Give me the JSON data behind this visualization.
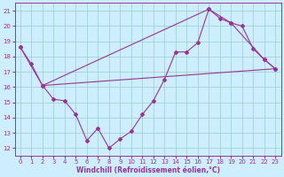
{
  "xlabel": "Windchill (Refroidissement éolien,°C)",
  "background_color": "#cceeff",
  "line_color": "#993399",
  "grid_color": "#99cccc",
  "xlim": [
    -0.5,
    23.5
  ],
  "ylim": [
    11.5,
    21.5
  ],
  "xticks": [
    0,
    1,
    2,
    3,
    4,
    5,
    6,
    7,
    8,
    9,
    10,
    11,
    12,
    13,
    14,
    15,
    16,
    17,
    18,
    19,
    20,
    21,
    22,
    23
  ],
  "yticks": [
    12,
    13,
    14,
    15,
    16,
    17,
    18,
    19,
    20,
    21
  ],
  "line1_x": [
    0,
    1,
    2,
    3,
    4,
    5,
    6,
    7,
    8,
    9,
    10,
    11,
    12,
    13,
    14,
    15,
    16,
    17,
    18,
    19,
    20,
    21,
    22,
    23
  ],
  "line1_y": [
    18.6,
    17.5,
    16.1,
    15.2,
    15.1,
    14.2,
    12.5,
    13.3,
    12.0,
    12.6,
    13.1,
    14.2,
    15.1,
    16.5,
    18.3,
    18.3,
    18.9,
    21.1,
    20.5,
    20.2,
    20.0,
    18.5,
    17.8,
    17.2
  ],
  "line2_x": [
    0,
    2,
    17,
    19,
    22,
    23
  ],
  "line2_y": [
    18.6,
    16.1,
    21.1,
    20.2,
    17.8,
    17.2
  ],
  "line3_x": [
    2,
    23
  ],
  "line3_y": [
    16.1,
    17.2
  ]
}
